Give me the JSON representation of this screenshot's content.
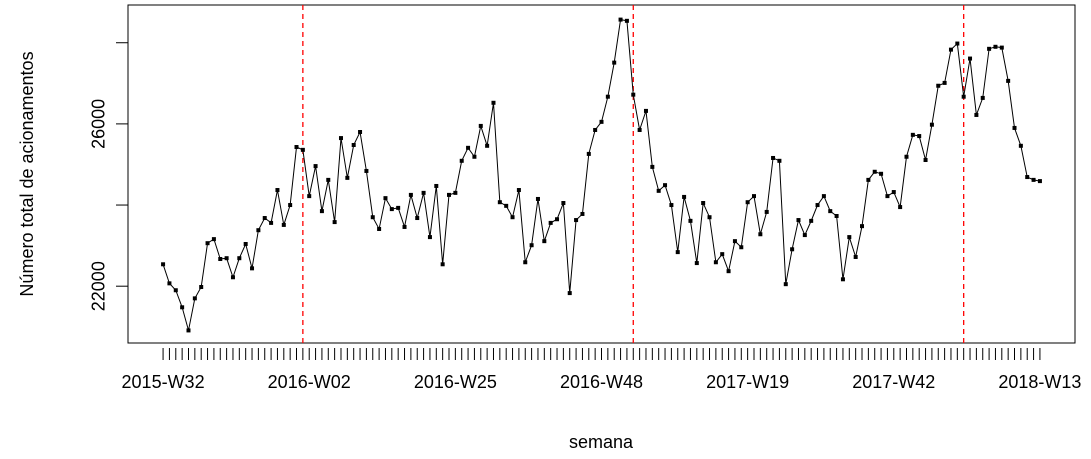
{
  "chart_data": {
    "type": "line",
    "xlabel": "semana",
    "ylabel": "Número total de acionamentos",
    "categories": [
      "2015-W32",
      null,
      null,
      null,
      null,
      null,
      null,
      null,
      null,
      null,
      null,
      null,
      null,
      null,
      null,
      null,
      null,
      null,
      null,
      null,
      null,
      null,
      null,
      "2016-W02",
      null,
      null,
      null,
      null,
      null,
      null,
      null,
      null,
      null,
      null,
      null,
      null,
      null,
      null,
      null,
      null,
      null,
      null,
      null,
      null,
      null,
      null,
      "2016-W25",
      null,
      null,
      null,
      null,
      null,
      null,
      null,
      null,
      null,
      null,
      null,
      null,
      null,
      null,
      null,
      null,
      null,
      null,
      null,
      null,
      null,
      null,
      "2016-W48",
      null,
      null,
      null,
      null,
      null,
      null,
      null,
      null,
      null,
      null,
      null,
      null,
      null,
      null,
      null,
      null,
      null,
      null,
      null,
      null,
      null,
      null,
      "2017-W19",
      null,
      null,
      null,
      null,
      null,
      null,
      null,
      null,
      null,
      null,
      null,
      null,
      null,
      null,
      null,
      null,
      null,
      null,
      null,
      null,
      null,
      null,
      "2017-W42",
      null,
      null,
      null,
      null,
      null,
      null,
      null,
      null,
      null,
      null,
      null,
      null,
      null,
      null,
      null,
      null,
      null,
      null,
      null,
      null,
      null,
      null,
      "2018-W13"
    ],
    "values": [
      22540,
      22070,
      21900,
      21480,
      20910,
      21700,
      21980,
      23060,
      23160,
      22670,
      22690,
      22220,
      22690,
      23040,
      22440,
      23380,
      23680,
      23560,
      24370,
      23510,
      24000,
      25430,
      25360,
      24220,
      24960,
      23850,
      24620,
      23580,
      25650,
      24670,
      25480,
      25800,
      24840,
      23700,
      23410,
      24170,
      23900,
      23930,
      23460,
      24250,
      23680,
      24300,
      23210,
      24470,
      22540,
      24250,
      24300,
      25090,
      25410,
      25190,
      25950,
      25460,
      26520,
      24070,
      23980,
      23700,
      24370,
      22590,
      23010,
      24150,
      23110,
      23560,
      23650,
      24050,
      21830,
      23630,
      23780,
      25260,
      25850,
      26050,
      26670,
      27510,
      28570,
      28540,
      26720,
      25850,
      26320,
      24940,
      24350,
      24490,
      24000,
      22840,
      24200,
      23610,
      22570,
      24050,
      23700,
      22590,
      22790,
      22370,
      23110,
      22960,
      24070,
      24220,
      23280,
      23830,
      25160,
      25090,
      22050,
      22910,
      23630,
      23260,
      23610,
      24000,
      24220,
      23850,
      23730,
      22170,
      23210,
      22720,
      23480,
      24620,
      24820,
      24770,
      24220,
      24320,
      23950,
      25190,
      25730,
      25700,
      25110,
      25980,
      26940,
      27010,
      27830,
      27980,
      26670,
      27610,
      26220,
      26640,
      27850,
      27900,
      27880,
      27060,
      25900,
      25460,
      24690,
      24620,
      24590
    ],
    "color": "#000000",
    "ylim": [
      20600,
      28930
    ],
    "yticks": [
      22000,
      26000
    ],
    "yticks_minor": [
      24000,
      28000
    ],
    "vlines": [
      22,
      74,
      126
    ],
    "vline_color": "#ff0000"
  }
}
